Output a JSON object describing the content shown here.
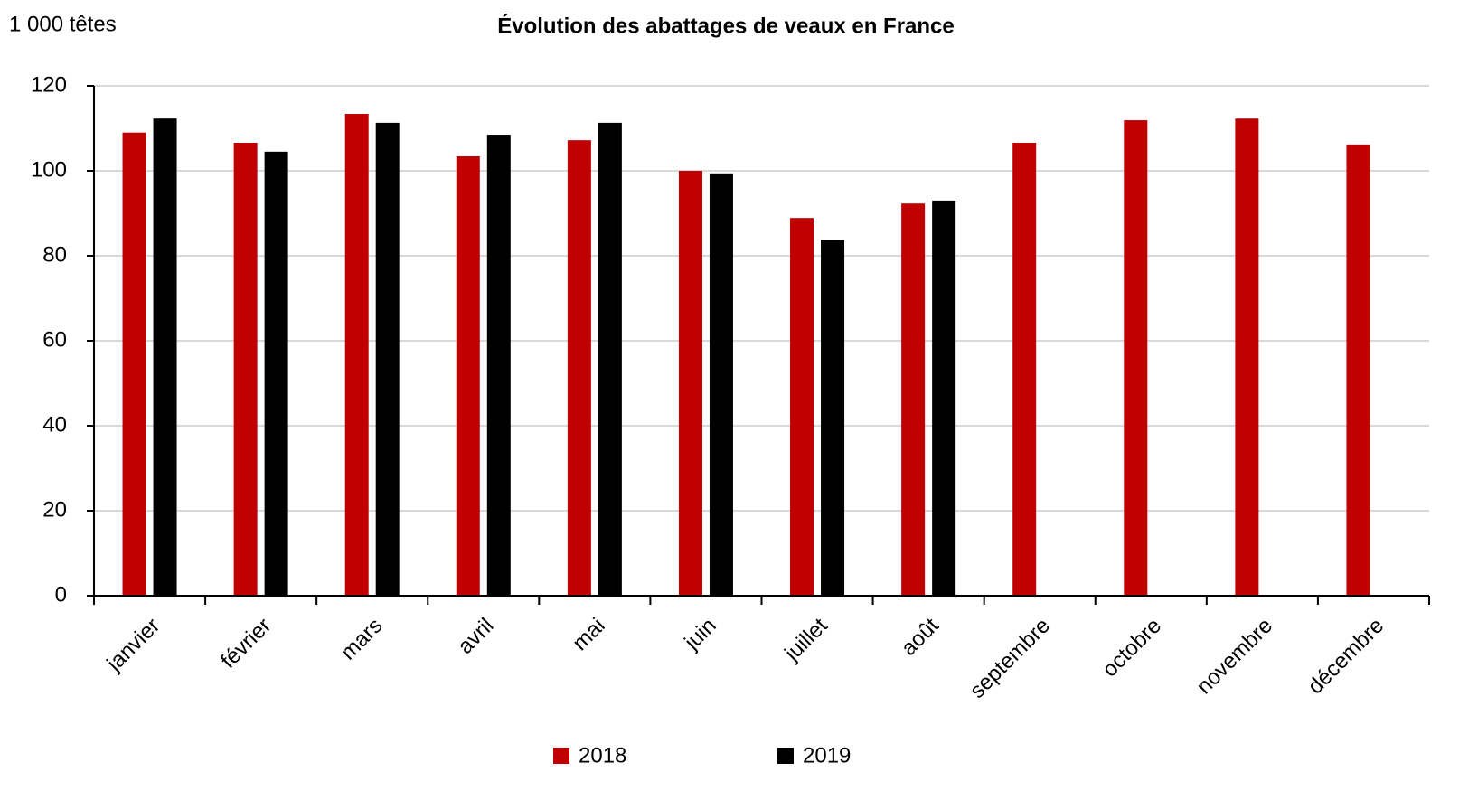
{
  "chart_data": {
    "type": "bar",
    "title": "Évolution des abattages de veaux en France",
    "y_label": "1 000 têtes",
    "categories": [
      "janvier",
      "février",
      "mars",
      "avril",
      "mai",
      "juin",
      "juillet",
      "août",
      "septembre",
      "octobre",
      "novembre",
      "décembre"
    ],
    "series": [
      {
        "name": "2018",
        "color": "#c00000",
        "values": [
          109,
          106.6,
          113.4,
          103.4,
          107.2,
          100,
          88.9,
          92.3,
          106.6,
          111.9,
          112.3,
          106.2
        ]
      },
      {
        "name": "2019",
        "color": "#000000",
        "values": [
          112.3,
          104.5,
          111.3,
          108.5,
          111.3,
          99.4,
          83.8,
          93,
          null,
          null,
          null,
          null
        ]
      }
    ],
    "ylim": [
      0,
      120
    ],
    "yticks": [
      0,
      20,
      40,
      60,
      80,
      100,
      120
    ],
    "grid": true,
    "legend": "bottom"
  }
}
